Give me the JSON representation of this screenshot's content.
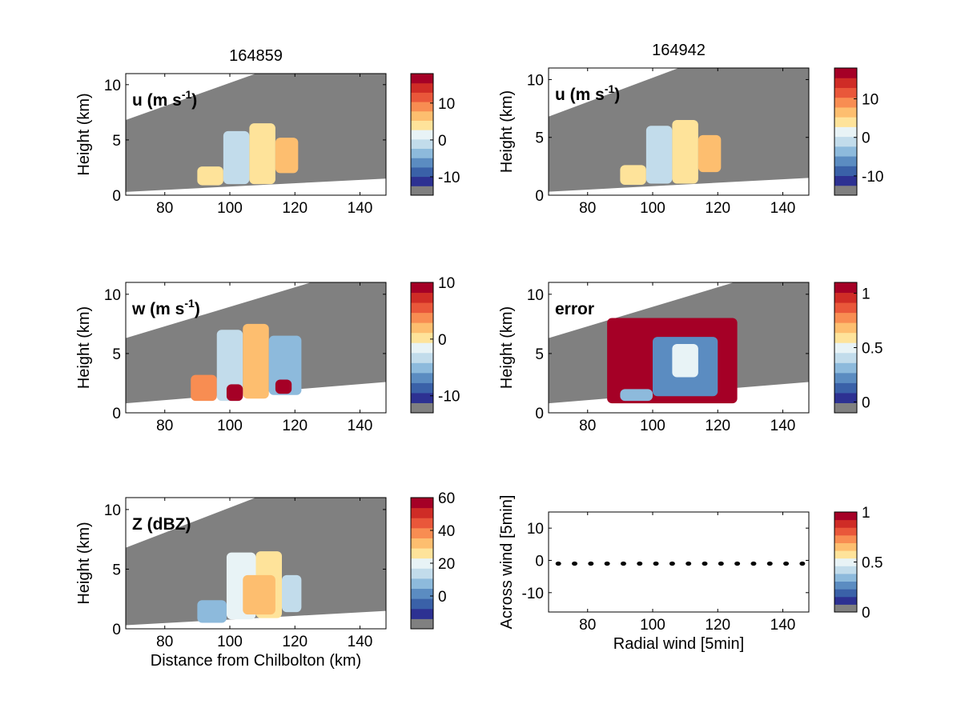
{
  "chart_data": [
    {
      "type": "heatmap",
      "id": "u1",
      "title": "164859",
      "field_label": "u (m s",
      "field_label_sup": "-1",
      "field_label_suffix": ")",
      "ylabel": "Height (km)",
      "xlabel": "",
      "xlim": [
        68,
        148
      ],
      "ylim": [
        0,
        11
      ],
      "xticks": [
        "80",
        "100",
        "120",
        "140"
      ],
      "yticks": [
        "0",
        "5",
        "10"
      ],
      "colorbar": {
        "range": [
          -15,
          18
        ],
        "ticks": [
          "-10",
          "0",
          "10"
        ]
      },
      "beam": {
        "low": [
          [
            68,
            0.3
          ],
          [
            148,
            1.5
          ]
        ],
        "high": [
          [
            68,
            6.8
          ],
          [
            108,
            11
          ]
        ]
      },
      "echo": [
        {
          "x0": 90,
          "x1": 98,
          "y0": 0.9,
          "y1": 2.6,
          "value": 3
        },
        {
          "x0": 98,
          "x1": 106,
          "y0": 1.0,
          "y1": 5.8,
          "value": -2
        },
        {
          "x0": 106,
          "x1": 114,
          "y0": 1.0,
          "y1": 6.5,
          "value": 4
        },
        {
          "x0": 114,
          "x1": 121,
          "y0": 2.0,
          "y1": 5.2,
          "value": 5
        }
      ]
    },
    {
      "type": "heatmap",
      "id": "u2",
      "title": "164942",
      "field_label": "u (m s",
      "field_label_sup": "-1",
      "field_label_suffix": ")",
      "ylabel": "Height (km)",
      "xlabel": "",
      "xlim": [
        68,
        148
      ],
      "ylim": [
        0,
        11
      ],
      "xticks": [
        "80",
        "100",
        "120",
        "140"
      ],
      "yticks": [
        "0",
        "5",
        "10"
      ],
      "colorbar": {
        "range": [
          -15,
          18
        ],
        "ticks": [
          "-10",
          "0",
          "10"
        ]
      },
      "beam": {
        "low": [
          [
            68,
            0.3
          ],
          [
            148,
            1.5
          ]
        ],
        "high": [
          [
            68,
            6.8
          ],
          [
            108,
            11
          ]
        ]
      },
      "echo": [
        {
          "x0": 90,
          "x1": 98,
          "y0": 0.9,
          "y1": 2.6,
          "value": 3
        },
        {
          "x0": 98,
          "x1": 106,
          "y0": 1.0,
          "y1": 6.0,
          "value": -2
        },
        {
          "x0": 106,
          "x1": 114,
          "y0": 1.0,
          "y1": 6.5,
          "value": 4
        },
        {
          "x0": 114,
          "x1": 121,
          "y0": 2.0,
          "y1": 5.2,
          "value": 5
        }
      ]
    },
    {
      "type": "heatmap",
      "id": "w",
      "title": "",
      "field_label": "w (m s",
      "field_label_sup": "-1",
      "field_label_suffix": ")",
      "ylabel": "Height (km)",
      "xlabel": "",
      "xlim": [
        68,
        148
      ],
      "ylim": [
        0,
        11
      ],
      "xticks": [
        "80",
        "100",
        "120",
        "140"
      ],
      "yticks": [
        "0",
        "5",
        "10"
      ],
      "colorbar": {
        "range": [
          -13,
          10
        ],
        "ticks": [
          "-10",
          "0",
          "10"
        ]
      },
      "beam": {
        "low": [
          [
            68,
            0.8
          ],
          [
            148,
            2.6
          ]
        ],
        "high": [
          [
            68,
            6.3
          ],
          [
            125,
            11
          ]
        ]
      },
      "echo": [
        {
          "x0": 88,
          "x1": 96,
          "y0": 1.0,
          "y1": 3.2,
          "value": 4
        },
        {
          "x0": 96,
          "x1": 104,
          "y0": 1.0,
          "y1": 7.0,
          "value": -4
        },
        {
          "x0": 104,
          "x1": 112,
          "y0": 1.2,
          "y1": 7.5,
          "value": 2
        },
        {
          "x0": 112,
          "x1": 122,
          "y0": 1.5,
          "y1": 6.5,
          "value": -6
        },
        {
          "x0": 99,
          "x1": 104,
          "y0": 1.0,
          "y1": 2.4,
          "value": 9
        },
        {
          "x0": 114,
          "x1": 119,
          "y0": 1.6,
          "y1": 2.8,
          "value": 9
        }
      ]
    },
    {
      "type": "heatmap",
      "id": "error",
      "title": "",
      "field_label": "error",
      "field_label_sup": "",
      "field_label_suffix": "",
      "ylabel": "Height (km)",
      "xlabel": "",
      "xlim": [
        68,
        148
      ],
      "ylim": [
        0,
        11
      ],
      "xticks": [
        "80",
        "100",
        "120",
        "140"
      ],
      "yticks": [
        "0",
        "5",
        "10"
      ],
      "colorbar": {
        "range": [
          -0.1,
          1.1
        ],
        "ticks": [
          "0",
          "0.5",
          "1"
        ]
      },
      "beam": {
        "low": [
          [
            68,
            0.8
          ],
          [
            148,
            2.6
          ]
        ],
        "high": [
          [
            68,
            6.3
          ],
          [
            125,
            11
          ]
        ]
      },
      "echo": [
        {
          "x0": 86,
          "x1": 126,
          "y0": 0.8,
          "y1": 8.0,
          "value": 1.05
        },
        {
          "x0": 90,
          "x1": 100,
          "y0": 1.0,
          "y1": 2.0,
          "value": 0.25
        },
        {
          "x0": 100,
          "x1": 120,
          "y0": 1.4,
          "y1": 6.4,
          "value": 0.15
        },
        {
          "x0": 106,
          "x1": 114,
          "y0": 3.0,
          "y1": 5.8,
          "value": 0.45
        }
      ]
    },
    {
      "type": "heatmap",
      "id": "z",
      "title": "",
      "field_label": "Z (dBZ)",
      "field_label_sup": "",
      "field_label_suffix": "",
      "ylabel": "Height (km)",
      "xlabel": "Distance from Chilbolton (km)",
      "xlim": [
        68,
        148
      ],
      "ylim": [
        0,
        11
      ],
      "xticks": [
        "80",
        "100",
        "120",
        "140"
      ],
      "yticks": [
        "0",
        "5",
        "10"
      ],
      "colorbar": {
        "range": [
          -20,
          60
        ],
        "ticks": [
          "0",
          "20",
          "40",
          "60"
        ]
      },
      "beam": {
        "low": [
          [
            68,
            0.3
          ],
          [
            148,
            1.5
          ]
        ],
        "high": [
          [
            68,
            6.8
          ],
          [
            108,
            11
          ]
        ]
      },
      "echo": [
        {
          "x0": 90,
          "x1": 99,
          "y0": 0.5,
          "y1": 2.4,
          "value": 6
        },
        {
          "x0": 99,
          "x1": 108,
          "y0": 0.8,
          "y1": 6.4,
          "value": 14
        },
        {
          "x0": 108,
          "x1": 116,
          "y0": 0.9,
          "y1": 6.5,
          "value": 20
        },
        {
          "x0": 116,
          "x1": 122,
          "y0": 1.4,
          "y1": 4.5,
          "value": 12
        },
        {
          "x0": 104,
          "x1": 114,
          "y0": 1.2,
          "y1": 4.5,
          "value": 30
        }
      ]
    },
    {
      "type": "scatter",
      "id": "vectors",
      "title": "",
      "ylabel": "Across wind [5min]",
      "xlabel": "Radial wind [5min]",
      "xlim": [
        68,
        148
      ],
      "ylim": [
        -16,
        15
      ],
      "xticks": [
        "80",
        "100",
        "120",
        "140"
      ],
      "yticks": [
        "-10",
        "0",
        "10"
      ],
      "colorbar": {
        "range": [
          0,
          1
        ],
        "ticks": [
          "0",
          "0.5",
          "1"
        ]
      },
      "points": {
        "x": [
          71,
          76,
          81,
          86,
          91,
          96,
          101,
          106,
          111,
          116,
          121,
          126,
          131,
          136,
          141,
          146
        ],
        "y": [
          -1,
          -1,
          -1,
          -1,
          -1,
          -1,
          -1,
          -1,
          -1,
          -1,
          -1,
          -1,
          -1,
          -1,
          -1,
          -1
        ]
      }
    }
  ],
  "colors": {
    "background_gray": "#808080",
    "colormap": [
      "#2d3192",
      "#3a61a8",
      "#5b8cc1",
      "#8dbadc",
      "#c2dceb",
      "#e8f3f6",
      "#fee39a",
      "#fdbe6f",
      "#f88d52",
      "#e9573a",
      "#cf2c26",
      "#a50026"
    ]
  }
}
